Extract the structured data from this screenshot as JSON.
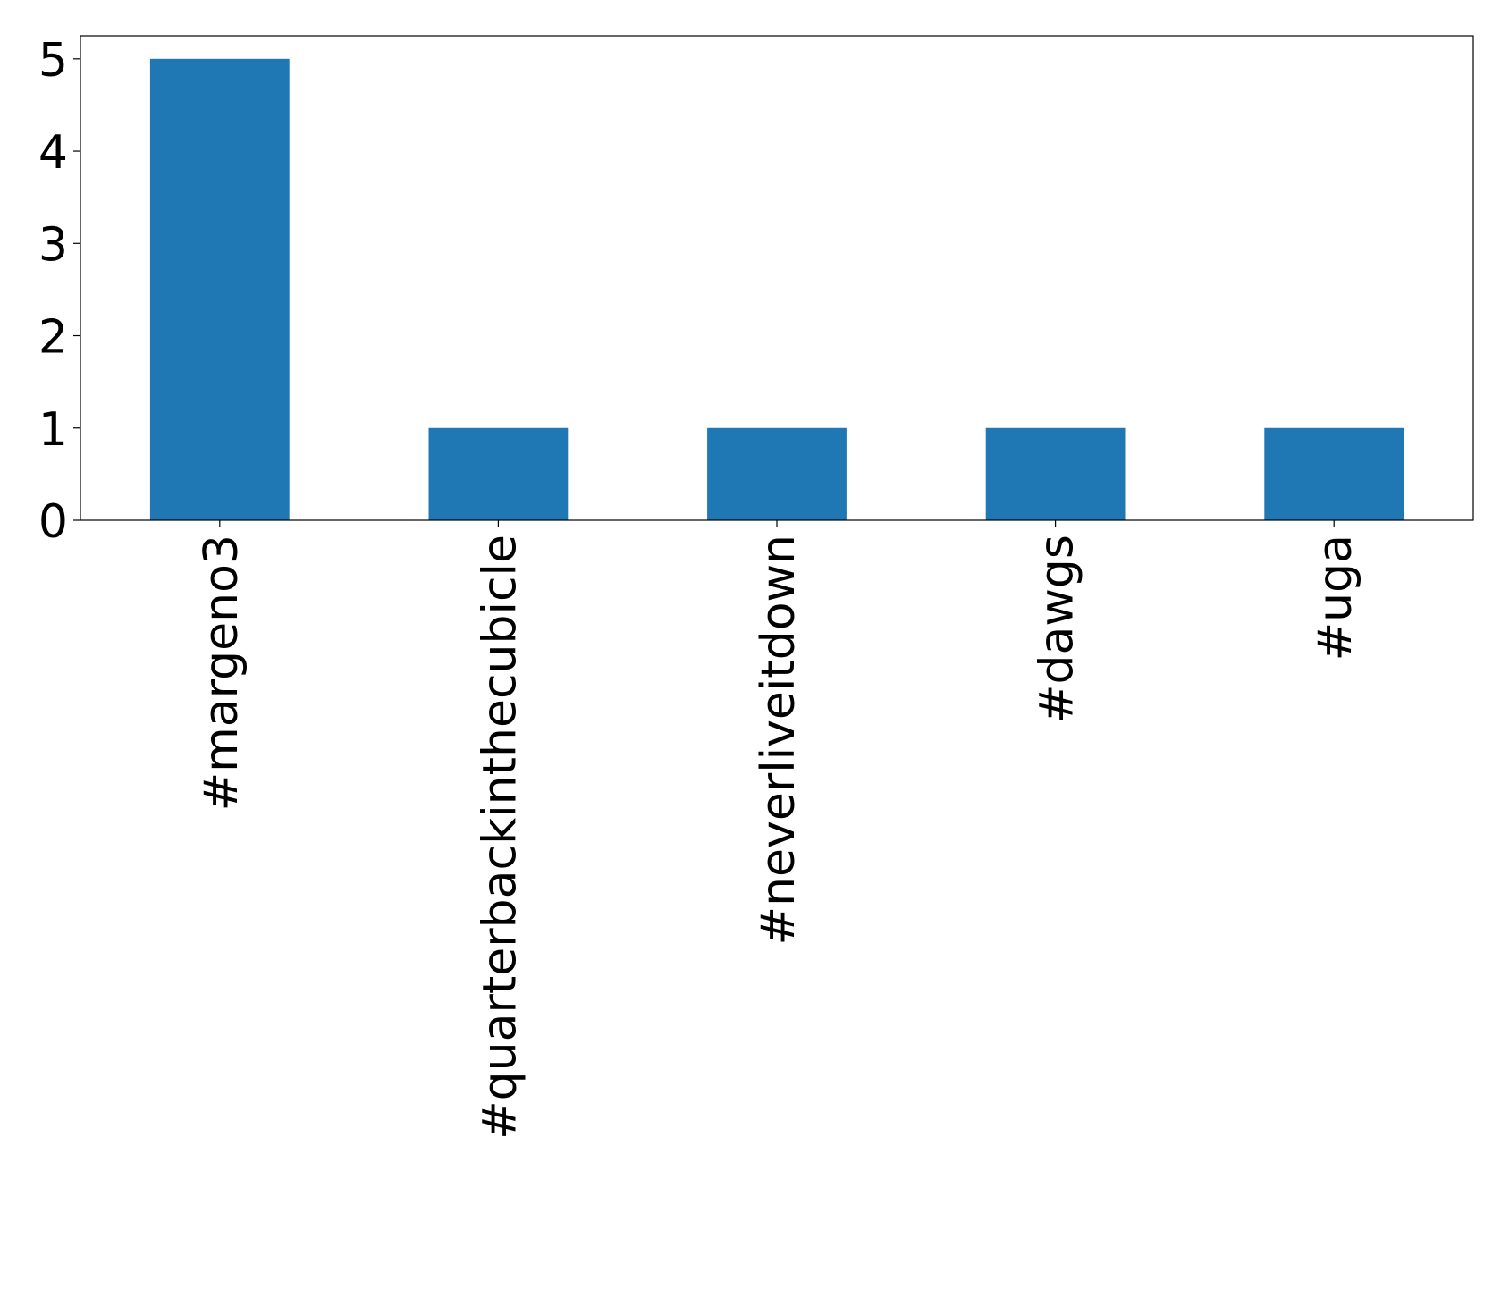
{
  "chart_data": {
    "type": "bar",
    "categories": [
      "#margeno3",
      "#quarterbackinthecubicle",
      "#neverliveitdown",
      "#dawgs",
      "#uga"
    ],
    "values": [
      5,
      1,
      1,
      1,
      1
    ],
    "color": "#1f77b4",
    "ylim": [
      0,
      5.25
    ],
    "yticks": [
      0,
      1,
      2,
      3,
      4,
      5
    ],
    "grid": false
  }
}
